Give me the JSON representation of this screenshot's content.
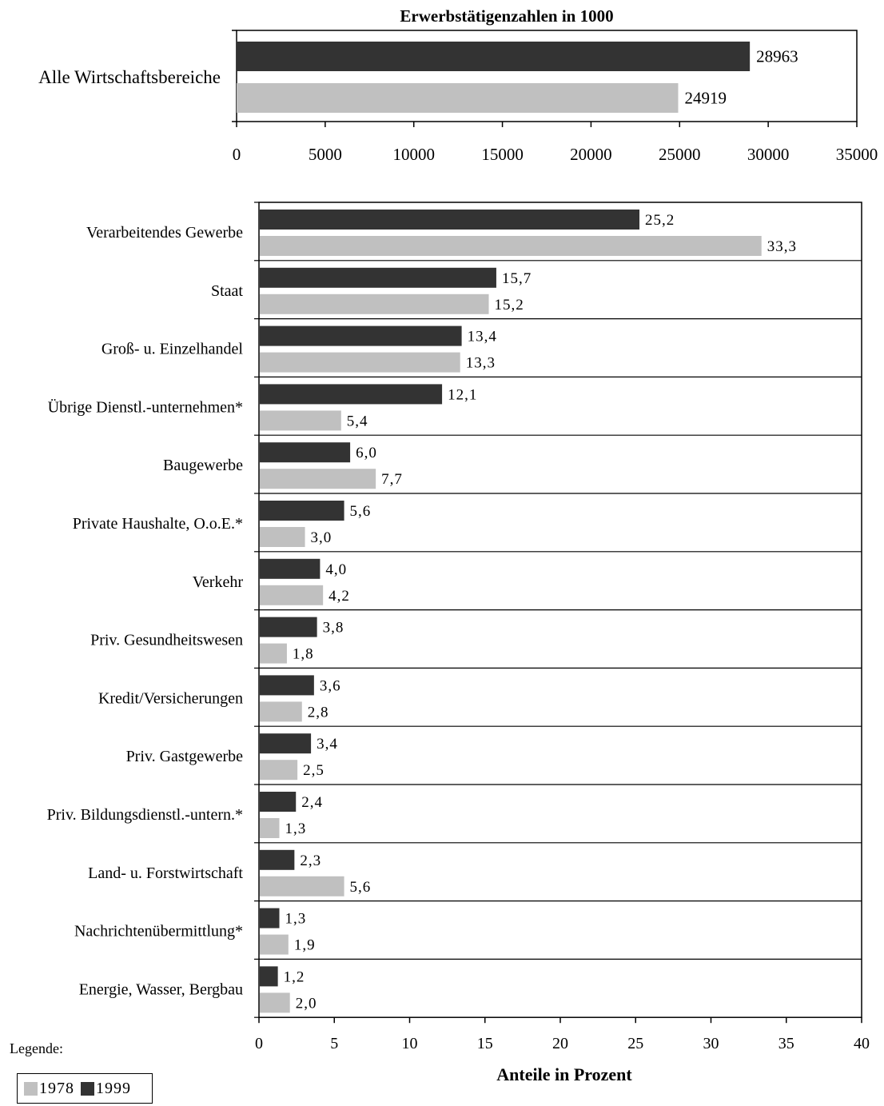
{
  "legend_title": "Legende:",
  "colors": {
    "y1978": "#c0c0c0",
    "y1999": "#333333"
  },
  "chart_data": [
    {
      "type": "bar",
      "orientation": "horizontal",
      "title": "Erwerbstätigenzahlen in 1000",
      "xlabel": "",
      "categories": [
        "Alle Wirtschaftsbereiche"
      ],
      "series": [
        {
          "name": "1999",
          "values": [
            28963
          ],
          "labels": [
            "28963"
          ]
        },
        {
          "name": "1978",
          "values": [
            24919
          ],
          "labels": [
            "24919"
          ]
        }
      ],
      "xlim": [
        0,
        35000
      ],
      "xticks": [
        0,
        5000,
        10000,
        15000,
        20000,
        25000,
        30000,
        35000
      ],
      "xtick_labels": [
        "0",
        "5000",
        "10000",
        "15000",
        "20000",
        "25000",
        "30000",
        "35000"
      ]
    },
    {
      "type": "bar",
      "orientation": "horizontal",
      "title": "",
      "xlabel": "Anteile in Prozent",
      "categories": [
        "Verarbeitendes Gewerbe",
        "Staat",
        "Groß- u. Einzelhandel",
        "Übrige Dienstl.-unternehmen*",
        "Baugewerbe",
        "Private Haushalte, O.o.E.*",
        "Verkehr",
        "Priv. Gesundheitswesen",
        "Kredit/Versicherungen",
        "Priv. Gastgewerbe",
        "Priv. Bildungsdienstl.-untern.*",
        "Land- u. Forstwirtschaft",
        "Nachrichtenübermittlung*",
        "Energie, Wasser, Bergbau"
      ],
      "series": [
        {
          "name": "1999",
          "values": [
            25.2,
            15.7,
            13.4,
            12.1,
            6.0,
            5.6,
            4.0,
            3.8,
            3.6,
            3.4,
            2.4,
            2.3,
            1.3,
            1.2
          ],
          "labels": [
            "25,2",
            "15,7",
            "13,4",
            "12,1",
            "6,0",
            "5,6",
            "4,0",
            "3,8",
            "3,6",
            "3,4",
            "2,4",
            "2,3",
            "1,3",
            "1,2"
          ]
        },
        {
          "name": "1978",
          "values": [
            33.3,
            15.2,
            13.3,
            5.4,
            7.7,
            3.0,
            4.2,
            1.8,
            2.8,
            2.5,
            1.3,
            5.6,
            1.9,
            2.0
          ],
          "labels": [
            "33,3",
            "15,2",
            "13,3",
            "5,4",
            "7,7",
            "3,0",
            "4,2",
            "1,8",
            "2,8",
            "2,5",
            "1,3",
            "5,6",
            "1,9",
            "2,0"
          ]
        }
      ],
      "xlim": [
        0,
        40
      ],
      "xticks": [
        0,
        5,
        10,
        15,
        20,
        25,
        30,
        35,
        40
      ],
      "xtick_labels": [
        "0",
        "5",
        "10",
        "15",
        "20",
        "25",
        "30",
        "35",
        "40"
      ]
    }
  ]
}
